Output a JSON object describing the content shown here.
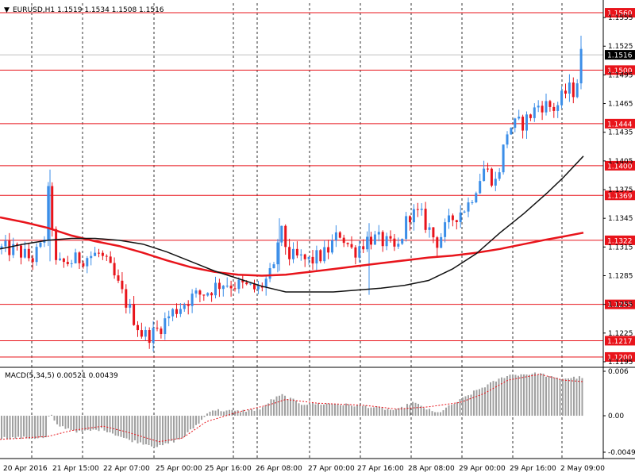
{
  "chart_data": {
    "type": "candlestick",
    "symbol_header": "EURUSD,H1  1.1519 1.1534 1.1508 1.1516",
    "price_axis": {
      "ylim": [
        1.119,
        1.157
      ],
      "ticks": [
        "1.1555",
        "1.1525",
        "1.1495",
        "1.1465",
        "1.1435",
        "1.1405",
        "1.1375",
        "1.1345",
        "1.1315",
        "1.1285",
        "1.1255",
        "1.1225",
        "1.1195"
      ]
    },
    "current_price": "1.1516",
    "levels": [
      "1.1560",
      "1.1500",
      "1.1444",
      "1.1400",
      "1.1369",
      "1.1322",
      "1.1255",
      "1.1217",
      "1.1200"
    ],
    "x_labels": [
      "20 Apr 2016",
      "21 Apr 15:00",
      "22 Apr 07:00",
      "25 Apr 00:00",
      "25 Apr 16:00",
      "26 Apr 08:00",
      "27 Apr 00:00",
      "27 Apr 16:00",
      "28 Apr 08:00",
      "29 Apr 00:00",
      "29 Apr 16:00",
      "2 May 09:00"
    ],
    "colors": {
      "bull": "#3b8ee8",
      "bear": "#e8141b",
      "ma_fast": "#e8141b",
      "ma_slow": "#111111",
      "level": "#e8141b",
      "macd_hist": "#a0a0a0",
      "macd_signal": "#e8141b"
    },
    "series_ma_slow": [
      [
        0,
        1.1313
      ],
      [
        30,
        1.1318
      ],
      [
        60,
        1.1322
      ],
      [
        90,
        1.1324
      ],
      [
        120,
        1.1324
      ],
      [
        150,
        1.1322
      ],
      [
        180,
        1.1318
      ],
      [
        210,
        1.131
      ],
      [
        240,
        1.13
      ],
      [
        270,
        1.129
      ],
      [
        300,
        1.1282
      ],
      [
        330,
        1.1274
      ],
      [
        360,
        1.1268
      ],
      [
        390,
        1.1268
      ],
      [
        420,
        1.1268
      ],
      [
        450,
        1.127
      ],
      [
        480,
        1.1272
      ],
      [
        510,
        1.1275
      ],
      [
        540,
        1.128
      ],
      [
        570,
        1.1292
      ],
      [
        600,
        1.1308
      ],
      [
        630,
        1.133
      ],
      [
        660,
        1.135
      ],
      [
        690,
        1.1372
      ],
      [
        710,
        1.1388
      ],
      [
        735,
        1.141
      ]
    ],
    "series_ma_fast": [
      [
        0,
        1.1346
      ],
      [
        30,
        1.1341
      ],
      [
        60,
        1.1335
      ],
      [
        90,
        1.1327
      ],
      [
        120,
        1.1321
      ],
      [
        150,
        1.1316
      ],
      [
        180,
        1.1309
      ],
      [
        210,
        1.1301
      ],
      [
        240,
        1.1294
      ],
      [
        270,
        1.1289
      ],
      [
        300,
        1.1286
      ],
      [
        330,
        1.1285
      ],
      [
        360,
        1.1286
      ],
      [
        390,
        1.1289
      ],
      [
        420,
        1.1292
      ],
      [
        450,
        1.1295
      ],
      [
        480,
        1.1298
      ],
      [
        510,
        1.1301
      ],
      [
        540,
        1.1304
      ],
      [
        570,
        1.1306
      ],
      [
        600,
        1.1309
      ],
      [
        630,
        1.1313
      ],
      [
        660,
        1.1318
      ],
      [
        690,
        1.1323
      ],
      [
        710,
        1.1326
      ],
      [
        735,
        1.133
      ]
    ],
    "macd": {
      "header": "MACD(5,34,5) 0.00521 0.00439",
      "ylim": [
        -0.00492,
        0.006
      ],
      "ticks": [
        "0.006",
        "0.00",
        "-0.00492"
      ],
      "hist_keys": [
        [
          0,
          -0.003
        ],
        [
          60,
          -0.003
        ],
        [
          62,
          0.0008
        ],
        [
          70,
          -0.0012
        ],
        [
          100,
          -0.0022
        ],
        [
          130,
          -0.0018
        ],
        [
          160,
          -0.0032
        ],
        [
          200,
          -0.0042
        ],
        [
          230,
          -0.003
        ],
        [
          255,
          -0.0005
        ],
        [
          265,
          0.0008
        ],
        [
          300,
          0.0006
        ],
        [
          330,
          0.0009
        ],
        [
          340,
          0.002
        ],
        [
          355,
          0.0028
        ],
        [
          380,
          0.0016
        ],
        [
          420,
          0.0016
        ],
        [
          460,
          0.0013
        ],
        [
          500,
          0.0007
        ],
        [
          520,
          0.0018
        ],
        [
          550,
          0.0003
        ],
        [
          575,
          0.0018
        ],
        [
          600,
          0.0034
        ],
        [
          640,
          0.0055
        ],
        [
          680,
          0.0057
        ],
        [
          700,
          0.005
        ],
        [
          735,
          0.0052
        ]
      ],
      "signal_keys": [
        [
          0,
          -0.0032
        ],
        [
          60,
          -0.0028
        ],
        [
          90,
          -0.002
        ],
        [
          130,
          -0.0014
        ],
        [
          160,
          -0.0022
        ],
        [
          200,
          -0.0035
        ],
        [
          230,
          -0.003
        ],
        [
          260,
          -0.0008
        ],
        [
          300,
          0.0005
        ],
        [
          340,
          0.0015
        ],
        [
          360,
          0.0022
        ],
        [
          400,
          0.0017
        ],
        [
          460,
          0.0014
        ],
        [
          500,
          0.0009
        ],
        [
          540,
          0.0012
        ],
        [
          580,
          0.0018
        ],
        [
          610,
          0.003
        ],
        [
          640,
          0.0048
        ],
        [
          680,
          0.0056
        ],
        [
          710,
          0.0048
        ],
        [
          735,
          0.0046
        ]
      ]
    },
    "price_keys": [
      [
        0,
        1.1313
      ],
      [
        20,
        1.1312
      ],
      [
        40,
        1.1302
      ],
      [
        55,
        1.1318
      ],
      [
        63,
        1.139
      ],
      [
        68,
        1.1295
      ],
      [
        90,
        1.13
      ],
      [
        110,
        1.1305
      ],
      [
        125,
        1.1308
      ],
      [
        140,
        1.129
      ],
      [
        160,
        1.1255
      ],
      [
        180,
        1.1222
      ],
      [
        195,
        1.1225
      ],
      [
        215,
        1.1245
      ],
      [
        240,
        1.1262
      ],
      [
        260,
        1.1268
      ],
      [
        280,
        1.1278
      ],
      [
        300,
        1.1275
      ],
      [
        325,
        1.127
      ],
      [
        345,
        1.129
      ],
      [
        352,
        1.1335
      ],
      [
        365,
        1.1305
      ],
      [
        390,
        1.13
      ],
      [
        410,
        1.1308
      ],
      [
        428,
        1.133
      ],
      [
        445,
        1.131
      ],
      [
        465,
        1.1325
      ],
      [
        485,
        1.132
      ],
      [
        500,
        1.131
      ],
      [
        515,
        1.135
      ],
      [
        530,
        1.1348
      ],
      [
        550,
        1.132
      ],
      [
        570,
        1.1345
      ],
      [
        590,
        1.136
      ],
      [
        610,
        1.1398
      ],
      [
        625,
        1.1382
      ],
      [
        640,
        1.144
      ],
      [
        660,
        1.1445
      ],
      [
        680,
        1.1465
      ],
      [
        700,
        1.146
      ],
      [
        715,
        1.148
      ],
      [
        725,
        1.1478
      ],
      [
        732,
        1.1516
      ]
    ]
  }
}
